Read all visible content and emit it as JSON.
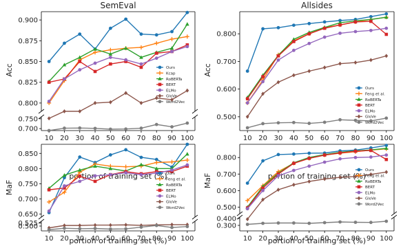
{
  "chart_data": [
    {
      "type": "line",
      "title": "SemEval",
      "xlabel": "portion of training set (%)",
      "ylabel": "Acc",
      "x": [
        10,
        20,
        30,
        40,
        50,
        60,
        70,
        80,
        90,
        100
      ],
      "xticks": [
        "10",
        "20",
        "30",
        "40",
        "50",
        "60",
        "70",
        "80",
        "90",
        "100"
      ],
      "broken_axis": true,
      "upper_ylim": [
        0.79,
        0.91
      ],
      "upper_yticks": [
        "0.800",
        "0.825",
        "0.850",
        "0.875",
        "0.900"
      ],
      "lower_ylim": [
        0.69,
        0.76
      ],
      "lower_yticks": [
        "0.700",
        "0.750"
      ],
      "legend_position": "bottom-right",
      "series": [
        {
          "name": "Ours",
          "color": "#1f77b4",
          "marker": "circle",
          "values": [
            0.85,
            0.872,
            0.883,
            0.865,
            0.89,
            0.901,
            0.883,
            0.882,
            0.886,
            0.909
          ]
        },
        {
          "name": "Kcap",
          "color": "#ff7f0e",
          "marker": "plus",
          "values": [
            0.8,
            0.827,
            0.852,
            0.861,
            0.864,
            0.866,
            0.867,
            0.872,
            0.877,
            0.88
          ]
        },
        {
          "name": "RoBERTa",
          "color": "#2ca02c",
          "marker": "triangle",
          "values": [
            0.826,
            0.846,
            0.855,
            0.865,
            0.859,
            0.866,
            0.855,
            0.861,
            0.866,
            0.895
          ]
        },
        {
          "name": "BERT",
          "color": "#d62728",
          "marker": "square",
          "values": [
            0.825,
            0.829,
            0.85,
            0.838,
            0.847,
            0.85,
            0.843,
            0.86,
            0.862,
            0.87
          ]
        },
        {
          "name": "ELMo",
          "color": "#9467bd",
          "marker": "circle",
          "values": [
            0.802,
            0.829,
            0.84,
            0.848,
            0.855,
            0.852,
            0.847,
            0.854,
            0.862,
            0.868
          ]
        },
        {
          "name": "GloVe",
          "color": "#8c564b",
          "marker": "diamond",
          "values": [
            0.752,
            0.786,
            0.789,
            0.8,
            0.801,
            0.812,
            0.8,
            0.806,
            0.804,
            0.815
          ]
        },
        {
          "name": "Word2Vec",
          "color": "#7f7f7f",
          "marker": "circle",
          "values": [
            0.685,
            0.702,
            0.703,
            0.701,
            0.697,
            0.698,
            0.702,
            0.721,
            0.709,
            0.728
          ]
        }
      ]
    },
    {
      "type": "line",
      "title": "Allsides",
      "xlabel": "portion of training set (%)",
      "ylabel": "Acc",
      "x": [
        10,
        20,
        30,
        40,
        50,
        60,
        70,
        80,
        90,
        100
      ],
      "xticks": [
        "10",
        "20",
        "30",
        "40",
        "50",
        "60",
        "70",
        "80",
        "90",
        "100"
      ],
      "ylim": [
        0.45,
        0.88
      ],
      "yticks": [
        "0.500",
        "0.600",
        "0.700",
        "0.800"
      ],
      "legend_position": "bottom-right",
      "series": [
        {
          "name": "Ours",
          "color": "#1f77b4",
          "marker": "circle",
          "values": [
            0.665,
            0.818,
            0.822,
            0.831,
            0.837,
            0.843,
            0.848,
            0.852,
            0.862,
            0.872
          ]
        },
        {
          "name": "Feng et al.",
          "color": "#ff7f0e",
          "marker": "plus",
          "values": [
            0.55,
            0.633,
            0.724,
            0.775,
            0.8,
            0.822,
            0.832,
            0.843,
            0.852,
            0.86
          ]
        },
        {
          "name": "RoBERTa",
          "color": "#2ca02c",
          "marker": "triangle",
          "values": [
            0.57,
            0.65,
            0.722,
            0.78,
            0.805,
            0.823,
            0.84,
            0.847,
            0.852,
            0.86
          ]
        },
        {
          "name": "BERT",
          "color": "#d62728",
          "marker": "square",
          "values": [
            0.565,
            0.645,
            0.72,
            0.772,
            0.8,
            0.82,
            0.832,
            0.843,
            0.845,
            0.798
          ]
        },
        {
          "name": "ELMo",
          "color": "#9467bd",
          "marker": "circle",
          "values": [
            0.55,
            0.627,
            0.705,
            0.74,
            0.765,
            0.788,
            0.802,
            0.808,
            0.812,
            0.82
          ]
        },
        {
          "name": "GloVe",
          "color": "#8c564b",
          "marker": "diamond",
          "values": [
            0.5,
            0.583,
            0.625,
            0.65,
            0.665,
            0.678,
            0.692,
            0.696,
            0.705,
            0.72
          ]
        },
        {
          "name": "Word2Vec",
          "color": "#7f7f7f",
          "marker": "circle",
          "values": [
            0.46,
            0.475,
            0.478,
            0.479,
            0.476,
            0.48,
            0.489,
            0.487,
            0.485,
            0.495
          ]
        }
      ]
    },
    {
      "type": "line",
      "title": "",
      "xlabel": "portion of training set (%)",
      "ylabel": "MaF",
      "x": [
        10,
        20,
        30,
        40,
        50,
        60,
        70,
        80,
        90,
        100
      ],
      "xticks": [
        "10",
        "20",
        "30",
        "40",
        "50",
        "60",
        "70",
        "80",
        "90",
        "100"
      ],
      "broken_axis": true,
      "upper_ylim": [
        0.64,
        0.88
      ],
      "upper_yticks": [
        "0.650",
        "0.700",
        "0.750",
        "0.800",
        "0.850"
      ],
      "lower_ylim": [
        0.46,
        0.54
      ],
      "lower_yticks": [
        "0.500",
        "0.525"
      ],
      "legend_position": "bottom-right",
      "series": [
        {
          "name": "Ours",
          "color": "#1f77b4",
          "marker": "circle",
          "values": [
            0.655,
            0.77,
            0.838,
            0.82,
            0.845,
            0.862,
            0.837,
            0.83,
            0.805,
            0.88
          ]
        },
        {
          "name": "Feng et al.",
          "color": "#ff7f0e",
          "marker": "plus",
          "values": [
            0.69,
            0.722,
            0.788,
            0.815,
            0.808,
            0.806,
            0.808,
            0.82,
            0.822,
            0.828
          ]
        },
        {
          "name": "RoBERTa",
          "color": "#2ca02c",
          "marker": "triangle",
          "values": [
            0.735,
            0.778,
            0.795,
            0.808,
            0.8,
            0.792,
            0.813,
            0.8,
            0.8,
            0.848
          ]
        },
        {
          "name": "BERT",
          "color": "#d62728",
          "marker": "square",
          "values": [
            0.73,
            0.736,
            0.775,
            0.758,
            0.78,
            0.79,
            0.783,
            0.79,
            0.79,
            0.808
          ]
        },
        {
          "name": "ELMo",
          "color": "#9467bd",
          "marker": "circle",
          "values": [
            0.66,
            0.743,
            0.758,
            0.776,
            0.78,
            0.786,
            0.78,
            0.785,
            0.795,
            0.812
          ]
        },
        {
          "name": "GloVe",
          "color": "#8c564b",
          "marker": "diamond",
          "values": [
            0.485,
            0.505,
            0.505,
            0.508,
            0.508,
            0.51,
            0.506,
            0.51,
            0.512,
            0.512
          ]
        },
        {
          "name": "Word2Vec",
          "color": "#7f7f7f",
          "marker": "circle",
          "values": [
            0.47,
            0.482,
            0.478,
            0.48,
            0.475,
            0.477,
            0.491,
            0.505,
            0.488,
            0.496
          ]
        }
      ]
    },
    {
      "type": "line",
      "title": "",
      "xlabel": "portion of training set (%)",
      "ylabel": "MaF",
      "x": [
        10,
        20,
        30,
        40,
        50,
        60,
        70,
        80,
        90,
        100
      ],
      "xticks": [
        "10",
        "20",
        "30",
        "40",
        "50",
        "60",
        "70",
        "80",
        "90",
        "100"
      ],
      "broken_axis": true,
      "upper_ylim": [
        0.46,
        0.88
      ],
      "upper_yticks": [
        "0.500",
        "0.600",
        "0.700",
        "0.800"
      ],
      "lower_ylim": [
        0.22,
        0.42
      ],
      "lower_yticks": [
        "0.300",
        "0.400"
      ],
      "legend_position": "bottom-right",
      "series": [
        {
          "name": "Ours",
          "color": "#1f77b4",
          "marker": "circle",
          "values": [
            0.645,
            0.78,
            0.818,
            0.821,
            0.826,
            0.827,
            0.84,
            0.845,
            0.858,
            0.873
          ]
        },
        {
          "name": "Feng et al.",
          "color": "#ff7f0e",
          "marker": "plus",
          "values": [
            0.54,
            0.63,
            0.715,
            0.765,
            0.795,
            0.815,
            0.826,
            0.835,
            0.845,
            0.852
          ]
        },
        {
          "name": "RoBERTa",
          "color": "#2ca02c",
          "marker": "triangle",
          "values": [
            0.5,
            0.625,
            0.705,
            0.768,
            0.8,
            0.818,
            0.832,
            0.84,
            0.846,
            0.856
          ]
        },
        {
          "name": "BERT",
          "color": "#d62728",
          "marker": "square",
          "values": [
            0.495,
            0.615,
            0.7,
            0.765,
            0.795,
            0.815,
            0.828,
            0.838,
            0.843,
            0.788
          ]
        },
        {
          "name": "ELMo",
          "color": "#9467bd",
          "marker": "circle",
          "values": [
            0.49,
            0.6,
            0.69,
            0.722,
            0.748,
            0.772,
            0.792,
            0.8,
            0.803,
            0.815
          ]
        },
        {
          "name": "GloVe",
          "color": "#8c564b",
          "marker": "diamond",
          "values": [
            0.39,
            0.545,
            0.605,
            0.635,
            0.655,
            0.67,
            0.68,
            0.685,
            0.698,
            0.712
          ]
        },
        {
          "name": "Word2Vec",
          "color": "#7f7f7f",
          "marker": "circle",
          "values": [
            0.315,
            0.33,
            0.335,
            0.335,
            0.33,
            0.34,
            0.35,
            0.345,
            0.343,
            0.36
          ]
        }
      ]
    }
  ]
}
